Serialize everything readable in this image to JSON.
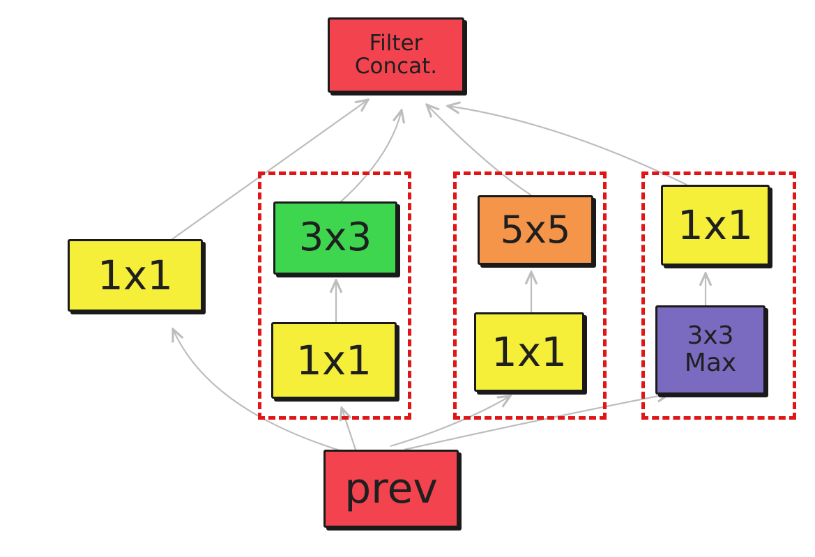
{
  "nodes": {
    "filter_concat": {
      "label": "Filter\nConcat.",
      "color": "#f2434f"
    },
    "prev": {
      "label": "prev",
      "color": "#f2434f"
    },
    "left_1x1": {
      "label": "1x1",
      "color": "#f5ef3a"
    },
    "branch2_1x1": {
      "label": "1x1",
      "color": "#f5ef3a"
    },
    "branch2_3x3": {
      "label": "3x3",
      "color": "#3fd64f"
    },
    "branch3_1x1": {
      "label": "1x1",
      "color": "#f5ef3a"
    },
    "branch3_5x5": {
      "label": "5x5",
      "color": "#f4954a"
    },
    "branch4_maxpool": {
      "label": "3x3\nMax",
      "color": "#7a6bc1"
    },
    "branch4_1x1": {
      "label": "1x1",
      "color": "#f5ef3a"
    }
  },
  "colors": {
    "arrow": "#bdbdbd",
    "group_border": "#e01515",
    "outline": "#1a1a1a"
  }
}
